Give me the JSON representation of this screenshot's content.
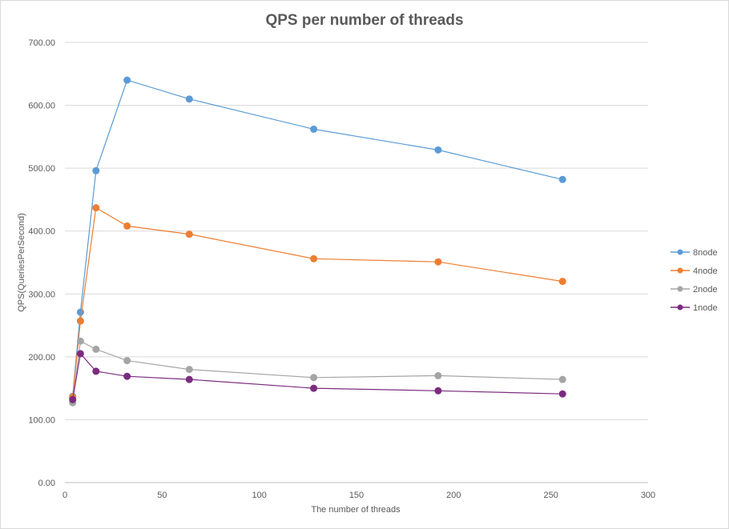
{
  "chart_data": {
    "type": "scatter",
    "title": "QPS per number of threads",
    "xlabel": "The number of threads",
    "ylabel": "QPS(QueriesPerSecond)",
    "xlim": [
      0,
      300
    ],
    "ylim": [
      0,
      700
    ],
    "x_ticks": [
      "0",
      "50",
      "100",
      "150",
      "200",
      "250",
      "300"
    ],
    "y_ticks": [
      "0.00",
      "100.00",
      "200.00",
      "300.00",
      "400.00",
      "500.00",
      "600.00",
      "700.00"
    ],
    "grid": "horizontal",
    "legend_position": "right",
    "x": [
      4,
      8,
      16,
      32,
      64,
      128,
      192,
      256
    ],
    "series": [
      {
        "name": "8node",
        "color": "#5b9bd5",
        "values": [
          137,
          271,
          496,
          640,
          610,
          562,
          529,
          482
        ]
      },
      {
        "name": "4node",
        "color": "#ed7d31",
        "values": [
          136,
          257,
          437,
          408,
          395,
          356,
          351,
          320
        ]
      },
      {
        "name": "2node",
        "color": "#a5a5a5",
        "values": [
          127,
          225,
          212,
          194,
          180,
          167,
          170,
          164
        ]
      },
      {
        "name": "1node",
        "color": "#7b2c7f",
        "values": [
          132,
          205,
          177,
          169,
          164,
          150,
          146,
          141
        ]
      }
    ]
  }
}
